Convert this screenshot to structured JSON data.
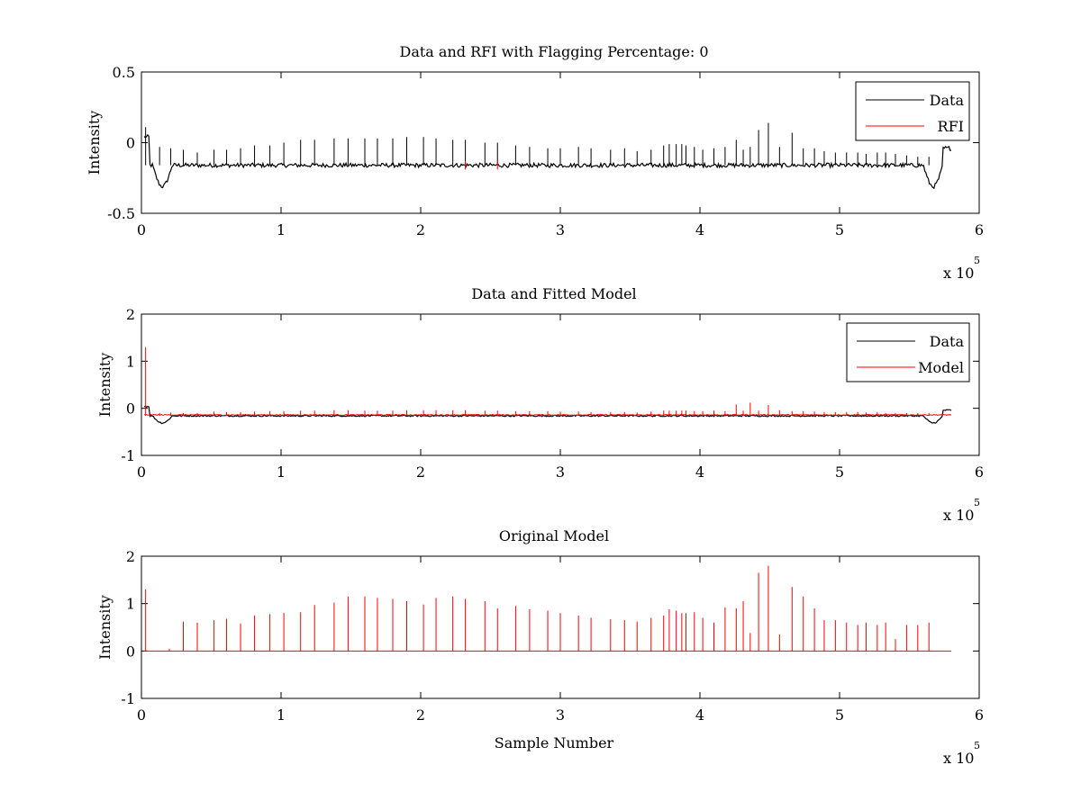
{
  "chart_data": [
    {
      "type": "line",
      "title": "Data and RFI with Flagging Percentage: 0",
      "xlabel": "",
      "ylabel": "Intensity",
      "xlim": [
        0,
        600000
      ],
      "ylim": [
        -0.5,
        0.5
      ],
      "xticks": [
        0,
        1,
        2,
        3,
        4,
        5,
        6
      ],
      "yticks": [
        "-0.5",
        "0",
        "0.5"
      ],
      "x_multiplier": "x 10",
      "x_multiplier_exp": "5",
      "legend_position": "top-right",
      "baseline_level": -0.16,
      "spike_x": [
        3000,
        13000,
        21000,
        30000,
        40000,
        52000,
        61000,
        71000,
        81000,
        92000,
        102000,
        114000,
        124000,
        138000,
        148000,
        160000,
        169000,
        180000,
        190000,
        202000,
        211000,
        223000,
        232000,
        246000,
        255000,
        268000,
        278000,
        291000,
        300000,
        313000,
        322000,
        336000,
        346000,
        355000,
        365000,
        374000,
        378000,
        383000,
        387000,
        390000,
        396000,
        402000,
        410000,
        418000,
        426000,
        431000,
        436000,
        442000,
        449000,
        457000,
        466000,
        474000,
        482000,
        489000,
        497000,
        505000,
        513000,
        519000,
        527000,
        533000,
        540000,
        548000,
        556000,
        564000
      ],
      "spike_y": [
        0.11,
        -0.03,
        -0.04,
        -0.05,
        -0.07,
        -0.05,
        -0.05,
        -0.04,
        -0.02,
        -0.02,
        0.0,
        0.02,
        0.02,
        0.03,
        0.03,
        0.03,
        0.03,
        0.03,
        0.04,
        0.04,
        0.03,
        0.02,
        0.02,
        0.0,
        0.0,
        -0.02,
        -0.03,
        -0.04,
        -0.04,
        -0.03,
        -0.04,
        -0.05,
        -0.04,
        -0.06,
        -0.05,
        -0.02,
        -0.01,
        -0.01,
        -0.01,
        -0.02,
        -0.03,
        -0.05,
        -0.04,
        -0.03,
        0.02,
        -0.05,
        -0.03,
        0.09,
        0.14,
        -0.03,
        0.07,
        -0.04,
        -0.04,
        -0.06,
        -0.07,
        -0.07,
        -0.07,
        -0.08,
        -0.07,
        -0.07,
        -0.08,
        -0.09,
        -0.1,
        -0.1
      ],
      "series": [
        {
          "name": "Data",
          "color": "#000000"
        },
        {
          "name": "RFI",
          "color": "#ff0000"
        }
      ]
    },
    {
      "type": "line",
      "title": "Data and Fitted Model",
      "xlabel": "",
      "ylabel": "Intensity",
      "xlim": [
        0,
        600000
      ],
      "ylim": [
        -1,
        2
      ],
      "xticks": [
        0,
        1,
        2,
        3,
        4,
        5,
        6
      ],
      "yticks": [
        "-1",
        "0",
        "1",
        "2"
      ],
      "x_multiplier": "x 10",
      "x_multiplier_exp": "5",
      "legend_position": "top-right",
      "baseline_level": -0.16,
      "spike_x": [
        3000,
        13000,
        21000,
        30000,
        40000,
        52000,
        61000,
        71000,
        81000,
        92000,
        102000,
        114000,
        124000,
        138000,
        148000,
        160000,
        169000,
        180000,
        190000,
        202000,
        211000,
        223000,
        232000,
        246000,
        255000,
        268000,
        278000,
        291000,
        300000,
        313000,
        322000,
        336000,
        346000,
        355000,
        365000,
        374000,
        378000,
        383000,
        387000,
        390000,
        396000,
        402000,
        410000,
        418000,
        426000,
        431000,
        436000,
        442000,
        449000,
        457000,
        466000,
        474000,
        482000,
        489000,
        497000,
        505000,
        513000,
        519000,
        527000,
        533000,
        540000,
        548000,
        556000,
        564000
      ],
      "spike_y": [
        1.3,
        -0.1,
        -0.09,
        -0.1,
        -0.1,
        -0.07,
        -0.08,
        -0.08,
        -0.07,
        -0.06,
        -0.06,
        -0.05,
        -0.05,
        -0.04,
        -0.04,
        -0.05,
        -0.05,
        -0.05,
        -0.04,
        -0.04,
        -0.04,
        -0.04,
        -0.04,
        -0.05,
        -0.05,
        -0.06,
        -0.06,
        -0.06,
        -0.07,
        -0.07,
        -0.08,
        -0.08,
        -0.08,
        -0.09,
        -0.07,
        -0.05,
        -0.05,
        -0.05,
        -0.05,
        -0.05,
        -0.06,
        -0.06,
        -0.05,
        -0.06,
        0.08,
        -0.05,
        0.12,
        -0.05,
        0.07,
        -0.04,
        -0.06,
        -0.06,
        -0.07,
        -0.08,
        -0.08,
        -0.08,
        -0.08,
        -0.09,
        -0.08,
        -0.1,
        -0.1,
        -0.1,
        -0.1,
        -0.1
      ],
      "series": [
        {
          "name": "Data",
          "color": "#000000"
        },
        {
          "name": "Model",
          "color": "#ff0000"
        }
      ]
    },
    {
      "type": "line",
      "title": "Original Model",
      "xlabel": "Sample Number",
      "ylabel": "Intensity",
      "xlim": [
        0,
        600000
      ],
      "ylim": [
        -1,
        2
      ],
      "xticks": [
        0,
        1,
        2,
        3,
        4,
        5,
        6
      ],
      "yticks": [
        "-1",
        "0",
        "1",
        "2"
      ],
      "x_multiplier": "x 10",
      "x_multiplier_exp": "5",
      "baseline_level": 0,
      "spike_x": [
        3000,
        20000,
        30000,
        40000,
        52000,
        61000,
        71000,
        81000,
        92000,
        102000,
        114000,
        124000,
        138000,
        148000,
        160000,
        169000,
        180000,
        190000,
        202000,
        211000,
        223000,
        232000,
        246000,
        255000,
        268000,
        278000,
        291000,
        300000,
        313000,
        322000,
        336000,
        346000,
        355000,
        365000,
        374000,
        378000,
        383000,
        387000,
        390000,
        396000,
        402000,
        410000,
        418000,
        426000,
        431000,
        436000,
        442000,
        449000,
        457000,
        466000,
        474000,
        482000,
        489000,
        497000,
        505000,
        513000,
        519000,
        527000,
        533000,
        540000,
        548000,
        556000,
        564000
      ],
      "spike_y": [
        1.3,
        0.05,
        0.62,
        0.6,
        0.65,
        0.68,
        0.58,
        0.75,
        0.78,
        0.8,
        0.82,
        0.97,
        1.02,
        1.15,
        1.15,
        1.12,
        1.1,
        1.05,
        0.98,
        1.12,
        1.15,
        1.1,
        1.05,
        0.9,
        0.95,
        0.88,
        0.85,
        0.8,
        0.75,
        0.7,
        0.67,
        0.65,
        0.62,
        0.7,
        0.75,
        0.88,
        0.85,
        0.8,
        0.8,
        0.82,
        0.7,
        0.6,
        0.92,
        0.9,
        1.05,
        0.38,
        1.65,
        1.8,
        0.35,
        1.35,
        1.15,
        0.9,
        0.65,
        0.65,
        0.6,
        0.55,
        0.6,
        0.55,
        0.6,
        0.25,
        0.55,
        0.55,
        0.6
      ],
      "series": [
        {
          "color": "#ff0000"
        }
      ]
    }
  ]
}
